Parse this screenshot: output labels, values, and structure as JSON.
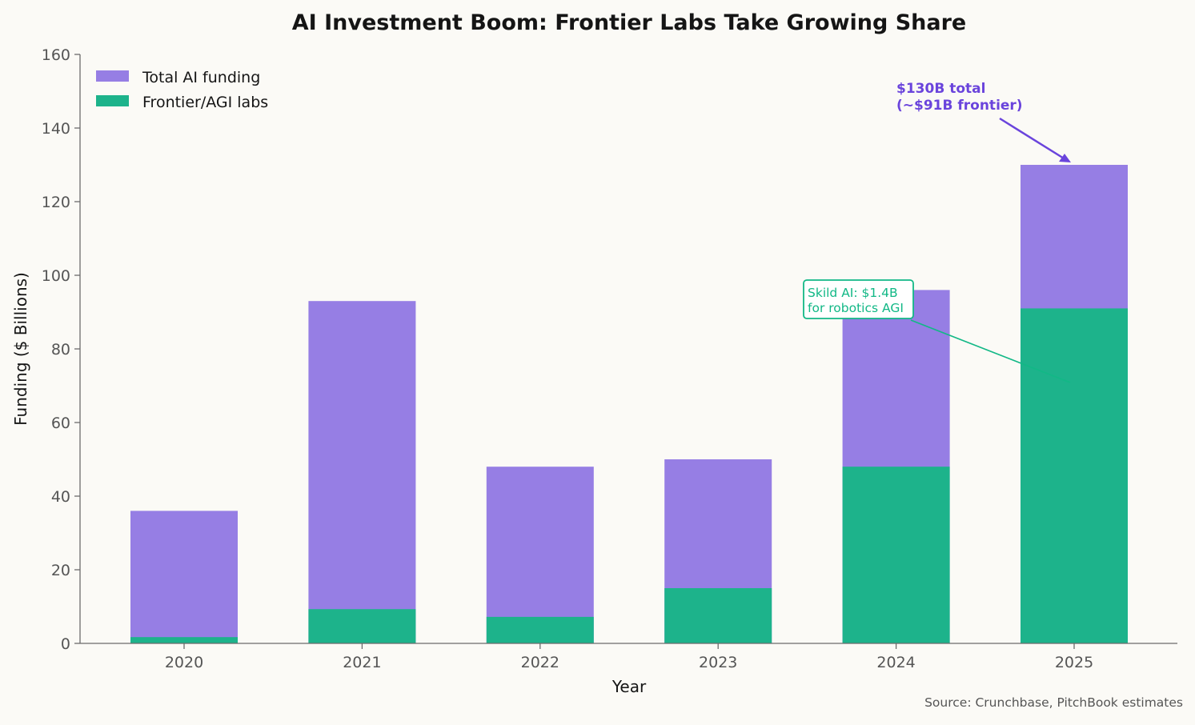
{
  "chart_data": {
    "type": "bar",
    "stacked": "overlay",
    "title": "AI Investment Boom: Frontier Labs Take Growing Share",
    "xlabel": "Year",
    "ylabel": "Funding ($ Billions)",
    "categories": [
      "2020",
      "2021",
      "2022",
      "2023",
      "2024",
      "2025"
    ],
    "series": [
      {
        "name": "Total AI funding",
        "color": "#967ee4",
        "values": [
          36,
          93,
          48,
          50,
          96,
          130
        ]
      },
      {
        "name": "Frontier/AGI labs",
        "color": "#1db38b",
        "values": [
          1.7,
          9.3,
          7.2,
          15,
          48,
          91
        ]
      }
    ],
    "ylim": [
      0,
      160
    ],
    "yticks": [
      0,
      20,
      40,
      60,
      80,
      100,
      120,
      140,
      160
    ],
    "grid": false,
    "legend": "top-left",
    "annotations": [
      {
        "text_lines": [
          "$130B total",
          "(~$91B frontier)"
        ],
        "color": "#6a44dc",
        "target": {
          "x": "2025",
          "y": 130
        }
      },
      {
        "text_lines": [
          "Skild AI: $1.4B",
          "for robotics AGI"
        ],
        "color": "#12b886",
        "target": {
          "x": "2025",
          "y": 71
        }
      }
    ],
    "source": "Source: Crunchbase, PitchBook estimates"
  }
}
